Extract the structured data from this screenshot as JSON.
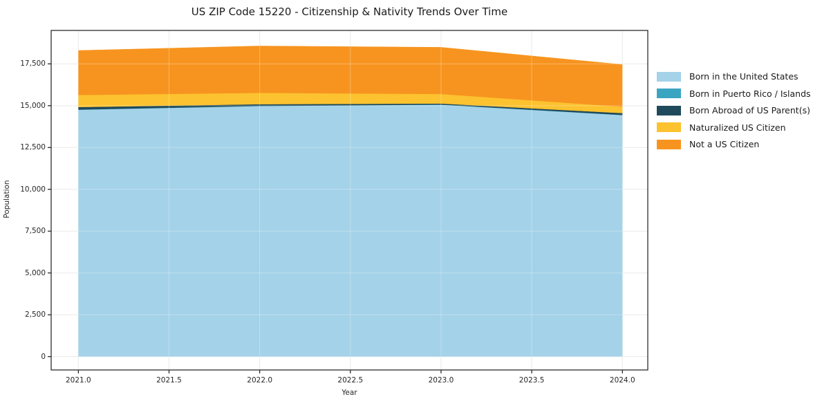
{
  "title": "US ZIP Code 15220 - Citizenship & Nativity Trends Over Time",
  "chart_data": {
    "type": "area",
    "stacked": true,
    "title": "US ZIP Code 15220 - Citizenship & Nativity Trends Over Time",
    "xlabel": "Year",
    "ylabel": "Population",
    "x": [
      2021,
      2022,
      2023,
      2024
    ],
    "series": [
      {
        "name": "Born in the United States",
        "color": "#a4d2e8",
        "values": [
          14760,
          14980,
          15060,
          14440
        ]
      },
      {
        "name": "Born in Puerto Rico / Islands",
        "color": "#3aa5c1",
        "values": [
          10,
          10,
          10,
          10
        ]
      },
      {
        "name": "Born Abroad of US Parent(s)",
        "color": "#1f4a5c",
        "values": [
          150,
          100,
          60,
          110
        ]
      },
      {
        "name": "Naturalized US Citizen",
        "color": "#fcc22f",
        "values": [
          720,
          680,
          570,
          380
        ]
      },
      {
        "name": "Not a US Citizen",
        "color": "#f7941f",
        "values": [
          2660,
          2800,
          2790,
          2520
        ]
      }
    ],
    "totals": [
      18300,
      18570,
      18490,
      17460
    ],
    "x_ticks": {
      "values": [
        2021.0,
        2021.5,
        2022.0,
        2022.5,
        2023.0,
        2023.5,
        2024.0
      ],
      "labels": [
        "2021.0",
        "2021.5",
        "2022.0",
        "2022.5",
        "2023.0",
        "2023.5",
        "2024.0"
      ]
    },
    "y_ticks": {
      "values": [
        0,
        2500,
        5000,
        7500,
        10000,
        12500,
        15000,
        17500
      ],
      "labels": [
        "0",
        "2,500",
        "5,000",
        "7,500",
        "10,000",
        "12,500",
        "15,000",
        "17,500"
      ]
    },
    "xlim": [
      2020.85,
      2024.14
    ],
    "ylim": [
      -800,
      19500
    ],
    "grid": true,
    "legend_position": "right-outside"
  },
  "colors": {
    "spine": "#1a1a1a",
    "grid_under": "#e3e3e3",
    "grid_over": "rgba(255,255,255,0.30)",
    "text": "#262626"
  }
}
